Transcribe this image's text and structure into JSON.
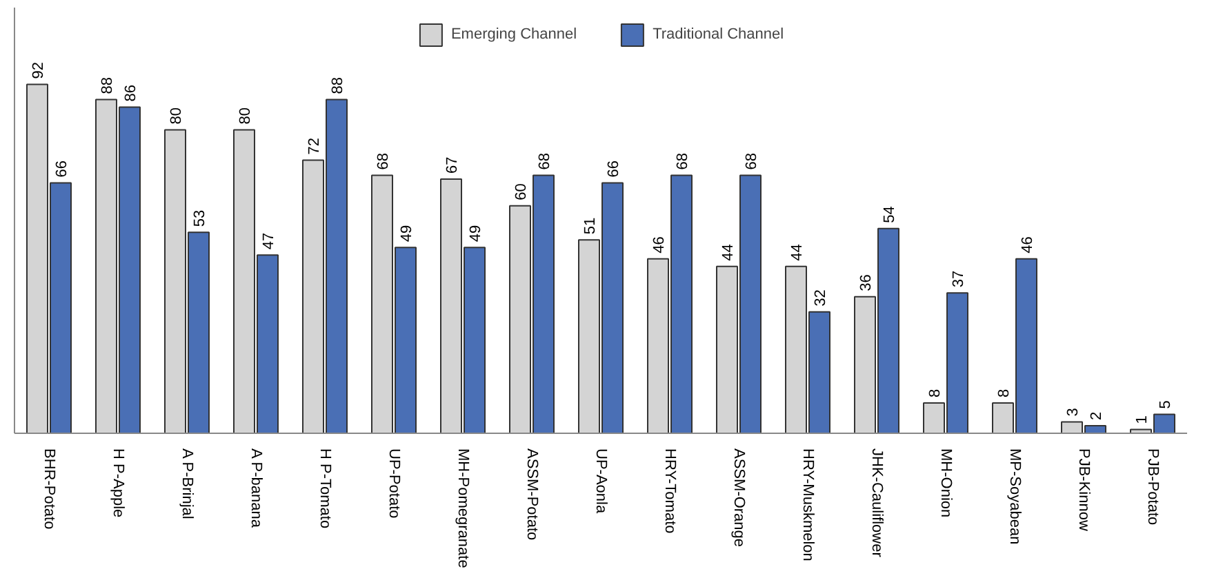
{
  "chart_data": {
    "type": "bar",
    "categories": [
      "BHR-Potato",
      "H P-Apple",
      "A P-Brinjal",
      "A P-banana",
      "H P-Tomato",
      "UP-Potato",
      "MH-Pomegranate",
      "ASSM-Potato",
      "UP-Aonla",
      "HRY-Tomato",
      "ASSM-Orange",
      "HRY-Muskmelon",
      "JHK-Cauliflower",
      "MH-Onion",
      "MP-Soyabean",
      "PJB-Kinnow",
      "PJB-Potato"
    ],
    "series": [
      {
        "name": "Emerging Channel",
        "color": "#d4d4d4",
        "values": [
          92,
          88,
          80,
          80,
          72,
          68,
          67,
          60,
          51,
          46,
          44,
          44,
          36,
          8,
          8,
          3,
          1
        ]
      },
      {
        "name": "Traditional Channel",
        "color": "#4a6fb5",
        "values": [
          66,
          86,
          53,
          47,
          88,
          49,
          49,
          68,
          66,
          68,
          68,
          32,
          54,
          37,
          46,
          2,
          5
        ]
      }
    ],
    "data_labels": true,
    "grid": false,
    "legend": "top"
  }
}
